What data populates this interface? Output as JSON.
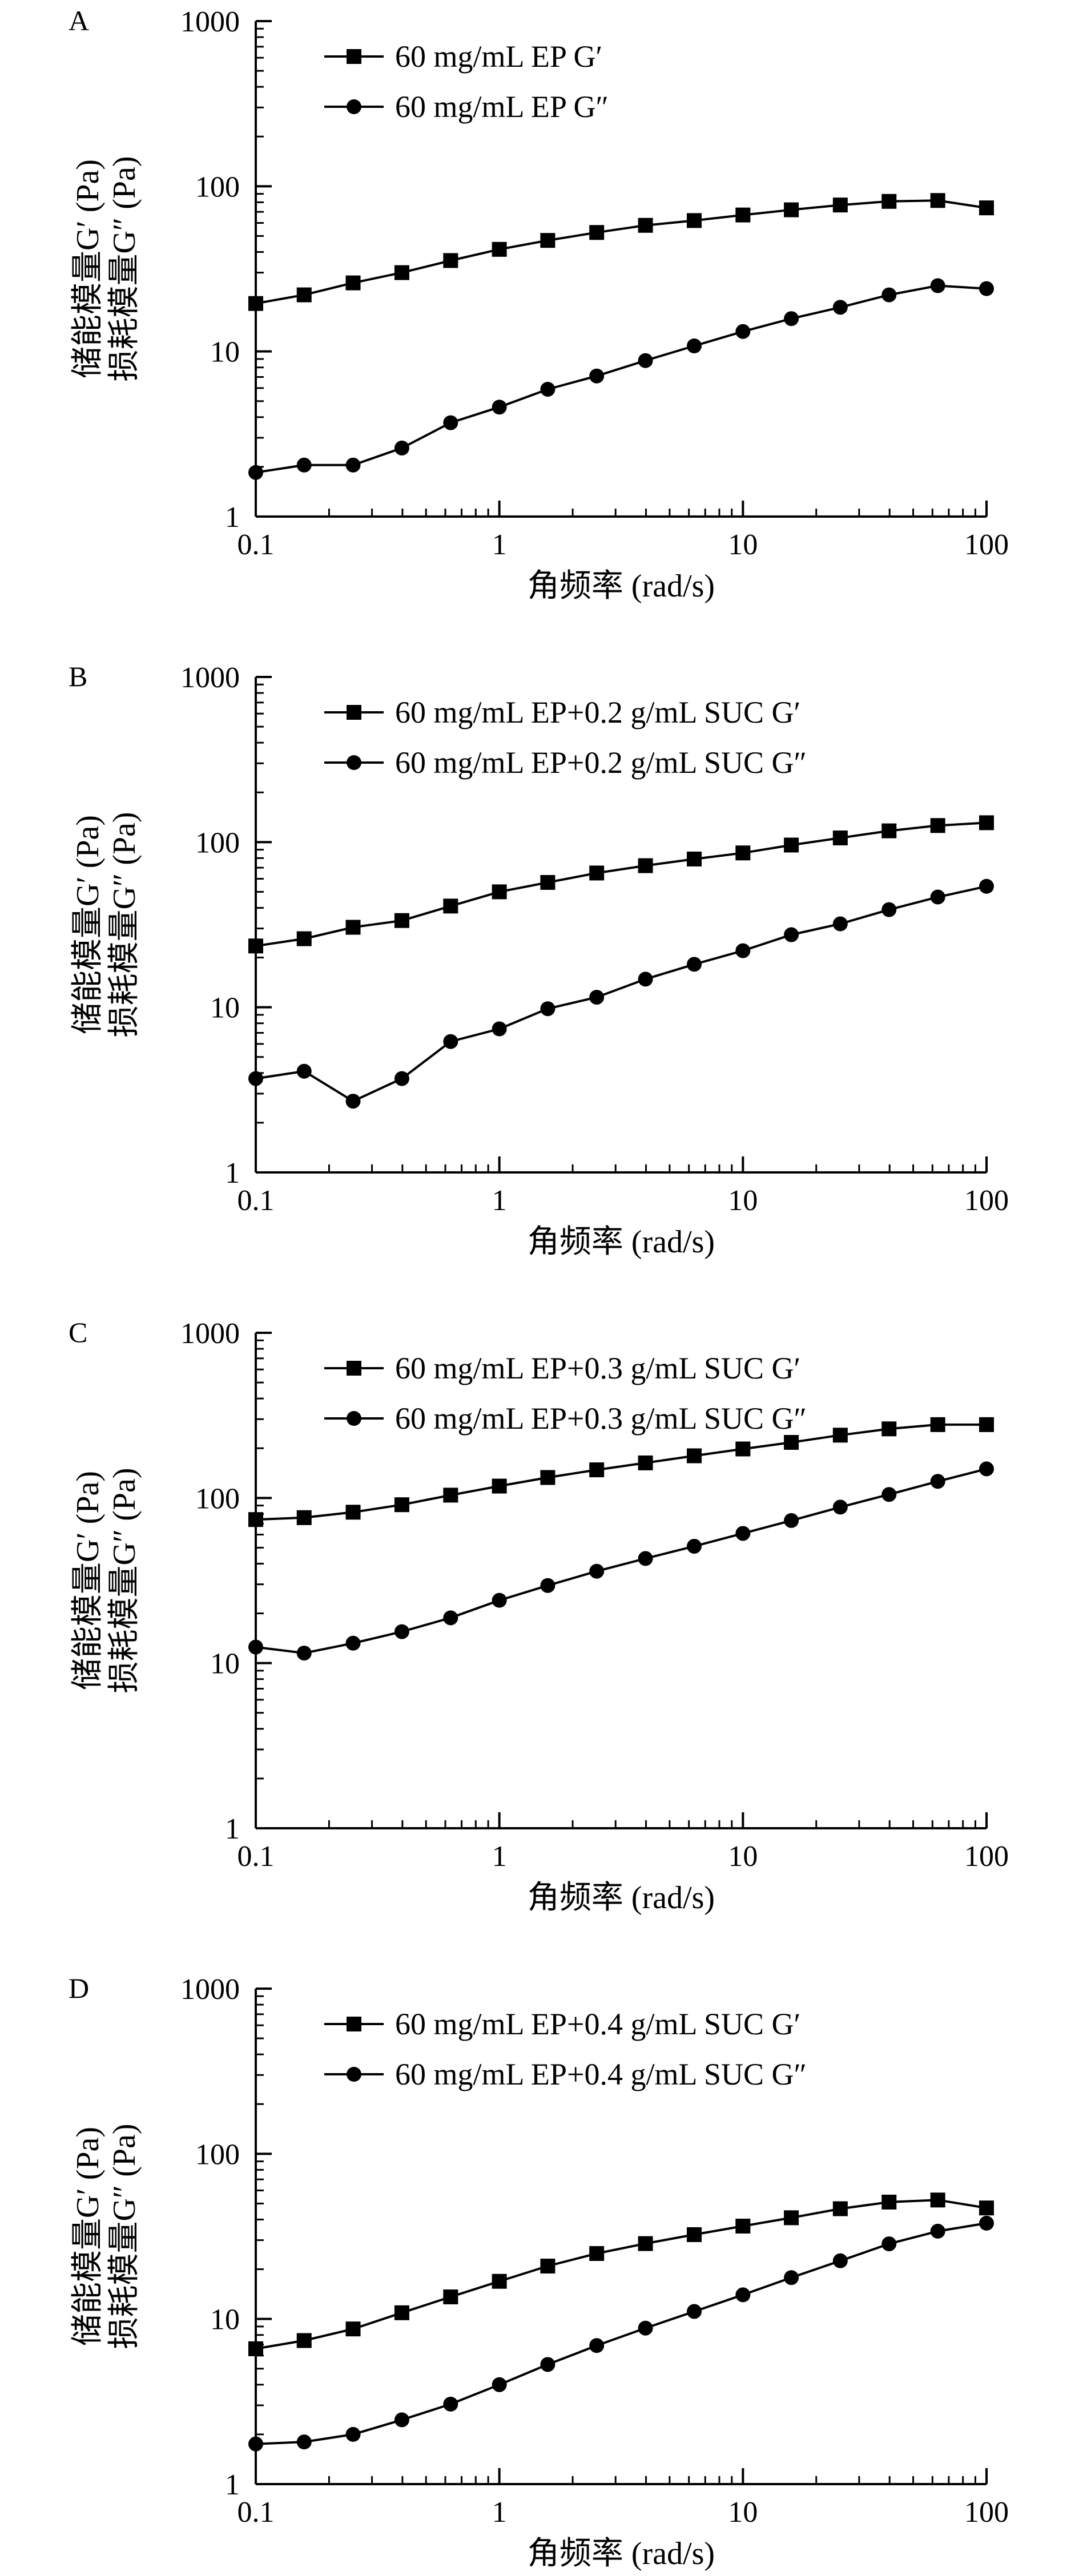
{
  "chart_data": [
    {
      "type": "line",
      "panel_label": "A",
      "x_scale": "log",
      "y_scale": "log",
      "xlim": [
        0.1,
        100
      ],
      "ylim": [
        1,
        1000
      ],
      "x_ticks": [
        "0.1",
        "1",
        "10",
        "100"
      ],
      "y_ticks": [
        "1",
        "10",
        "100",
        "1000"
      ],
      "xlabel": "角频率 (rad/s)",
      "ylabel_lines": [
        "储能模量G′ (Pa)",
        "损耗模量G″ (Pa)"
      ],
      "legend_position": "top-left",
      "x": [
        0.1,
        0.158,
        0.251,
        0.398,
        0.631,
        1,
        1.58,
        2.51,
        3.98,
        6.31,
        10,
        15.8,
        25.1,
        39.8,
        63.1,
        100
      ],
      "series": [
        {
          "name": "60 mg/mL EP G′",
          "marker": "square",
          "values": [
            19.5,
            22,
            26,
            30,
            35.5,
            41.5,
            47,
            52.5,
            58,
            62,
            67,
            72,
            77,
            81,
            82,
            74
          ]
        },
        {
          "name": "60 mg/mL EP G″",
          "marker": "circle",
          "values": [
            1.85,
            2.05,
            2.05,
            2.6,
            3.7,
            4.6,
            5.9,
            7.1,
            8.8,
            10.8,
            13.2,
            15.8,
            18.5,
            22,
            25,
            24
          ]
        }
      ]
    },
    {
      "type": "line",
      "panel_label": "B",
      "x_scale": "log",
      "y_scale": "log",
      "xlim": [
        0.1,
        100
      ],
      "ylim": [
        1,
        1000
      ],
      "x_ticks": [
        "0.1",
        "1",
        "10",
        "100"
      ],
      "y_ticks": [
        "1",
        "10",
        "100",
        "1000"
      ],
      "xlabel": "角频率 (rad/s)",
      "ylabel_lines": [
        "储能模量G′ (Pa)",
        "损耗模量G″ (Pa)"
      ],
      "legend_position": "top-left",
      "x": [
        0.1,
        0.158,
        0.251,
        0.398,
        0.631,
        1,
        1.58,
        2.51,
        3.98,
        6.31,
        10,
        15.8,
        25.1,
        39.8,
        63.1,
        100
      ],
      "series": [
        {
          "name": "60 mg/mL EP+0.2 g/mL SUC G′",
          "marker": "square",
          "values": [
            23.5,
            26,
            30.5,
            33.5,
            41,
            50,
            57,
            65,
            72,
            79,
            86,
            96,
            106,
            117,
            126,
            131
          ]
        },
        {
          "name": "60 mg/mL EP+0.2 g/mL SUC G″",
          "marker": "circle",
          "values": [
            3.7,
            4.1,
            2.7,
            3.7,
            6.2,
            7.4,
            9.8,
            11.5,
            14.8,
            18.2,
            22,
            27.5,
            32,
            39,
            46.5,
            54
          ]
        }
      ]
    },
    {
      "type": "line",
      "panel_label": "C",
      "x_scale": "log",
      "y_scale": "log",
      "xlim": [
        0.1,
        100
      ],
      "ylim": [
        1,
        1000
      ],
      "x_ticks": [
        "0.1",
        "1",
        "10",
        "100"
      ],
      "y_ticks": [
        "1",
        "10",
        "100",
        "1000"
      ],
      "xlabel": "角频率 (rad/s)",
      "ylabel_lines": [
        "储能模量G′ (Pa)",
        "损耗模量G″ (Pa)"
      ],
      "legend_position": "top-left",
      "x": [
        0.1,
        0.158,
        0.251,
        0.398,
        0.631,
        1,
        1.58,
        2.51,
        3.98,
        6.31,
        10,
        15.8,
        25.1,
        39.8,
        63.1,
        100
      ],
      "series": [
        {
          "name": "60 mg/mL EP+0.3 g/mL SUC G′",
          "marker": "square",
          "values": [
            74,
            76,
            82,
            91,
            104,
            118,
            133,
            148,
            163,
            180,
            198,
            217,
            240,
            262,
            278,
            278
          ]
        },
        {
          "name": "60 mg/mL EP+0.3 g/mL SUC G″",
          "marker": "circle",
          "values": [
            12.5,
            11.5,
            13.2,
            15.5,
            18.8,
            24,
            29.5,
            36,
            43,
            51,
            61,
            73,
            88,
            105,
            126,
            150
          ]
        }
      ]
    },
    {
      "type": "line",
      "panel_label": "D",
      "x_scale": "log",
      "y_scale": "log",
      "xlim": [
        0.1,
        100
      ],
      "ylim": [
        1,
        1000
      ],
      "x_ticks": [
        "0.1",
        "1",
        "10",
        "100"
      ],
      "y_ticks": [
        "1",
        "10",
        "100",
        "1000"
      ],
      "xlabel": "角频率 (rad/s)",
      "ylabel_lines": [
        "储能模量G′ (Pa)",
        "损耗模量G″ (Pa)"
      ],
      "legend_position": "top-left",
      "x": [
        0.1,
        0.158,
        0.251,
        0.398,
        0.631,
        1,
        1.58,
        2.51,
        3.98,
        6.31,
        10,
        15.8,
        25.1,
        39.8,
        63.1,
        100
      ],
      "series": [
        {
          "name": "60 mg/mL EP+0.4 g/mL SUC G′",
          "marker": "square",
          "values": [
            6.6,
            7.4,
            8.7,
            10.9,
            13.6,
            16.9,
            20.9,
            24.9,
            28.6,
            32.4,
            36.5,
            41,
            46.5,
            51,
            52.5,
            47
          ]
        },
        {
          "name": "60 mg/mL EP+0.4 g/mL SUC G″",
          "marker": "circle",
          "values": [
            1.75,
            1.8,
            2.0,
            2.45,
            3.05,
            4.0,
            5.3,
            6.9,
            8.8,
            11.1,
            14,
            17.8,
            22.5,
            28.5,
            34,
            38
          ]
        }
      ]
    }
  ]
}
